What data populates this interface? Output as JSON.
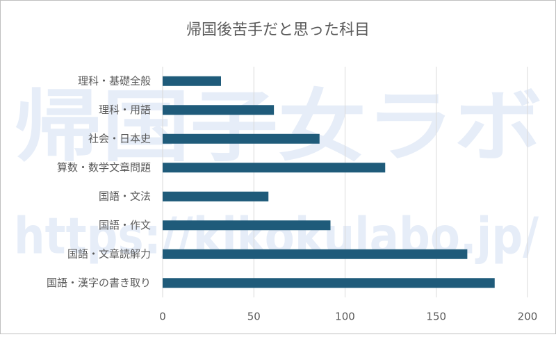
{
  "chart_data": {
    "type": "bar",
    "orientation": "horizontal",
    "title": "帰国後苦手だと思った科目",
    "watermark": [
      "帰国子女ラボ",
      "https://kikokulabo.jp/"
    ],
    "categories": [
      "理科・基礎全般",
      "理科・用語",
      "社会・日本史",
      "算数・数学文章問題",
      "国語・文法",
      "国語・作文",
      "国語・文章読解力",
      "国語・漢字の書き取り"
    ],
    "values": [
      32,
      61,
      86,
      122,
      58,
      92,
      167,
      182
    ],
    "color": "#1f5b7a",
    "xlim": [
      0,
      200
    ],
    "xticks": [
      0,
      50,
      100,
      150,
      200
    ],
    "grid": true
  }
}
